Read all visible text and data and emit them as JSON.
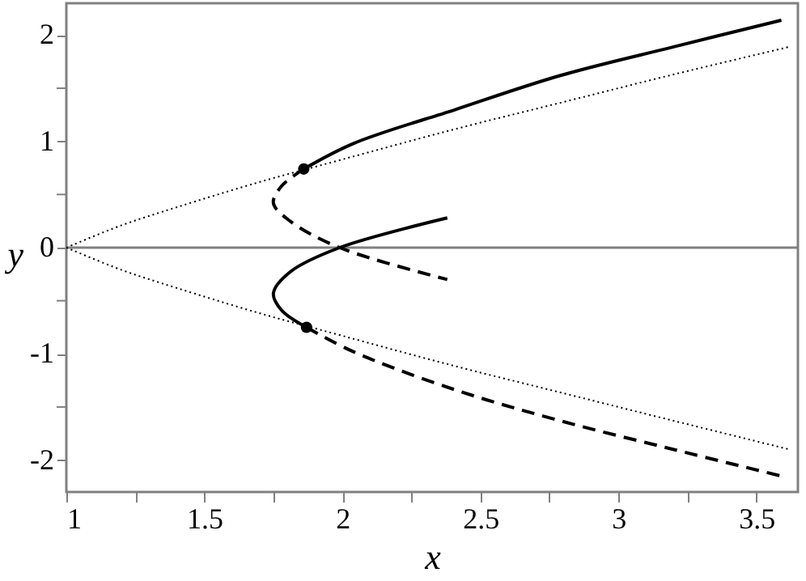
{
  "chart_data": {
    "type": "line",
    "xlabel": "x",
    "ylabel": "y",
    "xlim": [
      1,
      3.65
    ],
    "ylim": [
      -2.3,
      2.3
    ],
    "xticks": [
      1,
      {
        "value": 1.25,
        "label": null
      },
      1.5,
      {
        "value": 1.75,
        "label": null
      },
      2,
      {
        "value": 2.25,
        "label": null
      },
      2.5,
      {
        "value": 2.75,
        "label": null
      },
      3,
      {
        "value": 3.25,
        "label": null
      },
      3.5
    ],
    "yticks": [
      -2,
      {
        "value": -1.5,
        "label": null
      },
      -1,
      {
        "value": -0.5,
        "label": null
      },
      0,
      {
        "value": 0.5,
        "label": null
      },
      1,
      {
        "value": 1.5,
        "label": null
      },
      2
    ],
    "grid": false,
    "ref_lines": [
      {
        "axis": "y",
        "value": 0,
        "color": "#808080",
        "line_style": "solid"
      }
    ],
    "series": [
      {
        "type": "line",
        "line_style": "dotted",
        "color": "#000000",
        "x": [
          1,
          1.2,
          1.4,
          1.69,
          2.0,
          2.4,
          2.8,
          3.2,
          3.62
        ],
        "values": [
          0,
          0.21,
          0.38,
          0.61,
          0.83,
          1.11,
          1.37,
          1.63,
          1.89
        ]
      },
      {
        "type": "line",
        "line_style": "dotted",
        "color": "#000000",
        "x": [
          1,
          1.2,
          1.4,
          1.69,
          2.0,
          2.4,
          2.8,
          3.2,
          3.62
        ],
        "values": [
          0,
          -0.21,
          -0.38,
          -0.61,
          -0.83,
          -1.11,
          -1.37,
          -1.63,
          -1.9
        ]
      },
      {
        "type": "line",
        "line_style": "solid",
        "color": "#000000",
        "x": [
          1.86,
          2.04,
          2.41,
          2.79,
          3.2,
          3.59
        ],
        "values": [
          0.74,
          0.98,
          1.3,
          1.62,
          1.89,
          2.14
        ]
      },
      {
        "type": "line",
        "line_style": "dashed",
        "color": "#000000",
        "x": [
          1.86,
          1.78,
          1.75,
          1.81,
          1.99,
          2.38
        ],
        "values": [
          0.74,
          0.58,
          0.42,
          0.25,
          0,
          -0.3
        ]
      },
      {
        "type": "line",
        "line_style": "solid",
        "color": "#000000",
        "x": [
          2.38,
          1.99,
          1.81,
          1.75,
          1.78,
          1.87
        ],
        "values": [
          0.28,
          0,
          -0.23,
          -0.43,
          -0.59,
          -0.75
        ]
      },
      {
        "type": "line",
        "line_style": "dashed",
        "color": "#000000",
        "x": [
          1.87,
          2.04,
          2.41,
          2.79,
          3.2,
          3.59
        ],
        "values": [
          -0.75,
          -0.98,
          -1.34,
          -1.63,
          -1.9,
          -2.15
        ]
      },
      {
        "type": "scatter",
        "marker": "circle",
        "color": "#000000",
        "x": [
          1.86,
          1.87
        ],
        "values": [
          0.74,
          -0.75
        ]
      }
    ]
  }
}
